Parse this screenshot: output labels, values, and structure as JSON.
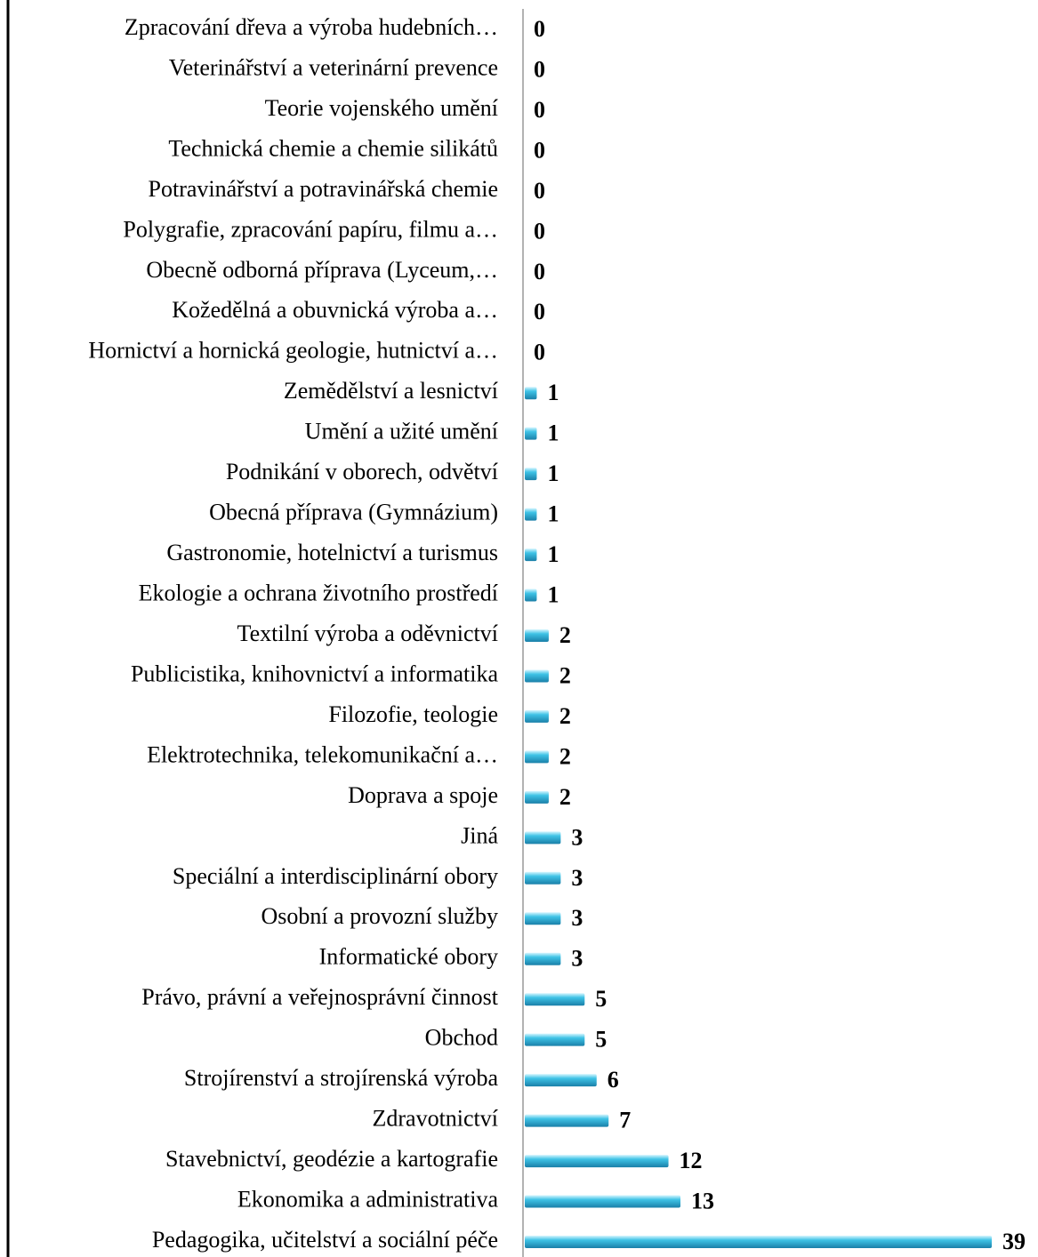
{
  "chart_data": {
    "type": "bar",
    "orientation": "horizontal",
    "color": "#3fc3e6",
    "categories": [
      "Zpracování dřeva a výroba hudebních…",
      "Veterinářství a veterinární prevence",
      "Teorie vojenského umění",
      "Technická chemie a chemie silikátů",
      "Potravinářství a potravinářská chemie",
      "Polygrafie, zpracování papíru, filmu a…",
      "Obecně odborná příprava (Lyceum,…",
      "Kožedělná a obuvnická výroba a…",
      "Hornictví a hornická geologie, hutnictví a…",
      "Zemědělství a lesnictví",
      "Umění a užité umění",
      "Podnikání v oborech, odvětví",
      "Obecná příprava (Gymnázium)",
      "Gastronomie, hotelnictví a turismus",
      "Ekologie a ochrana životního prostředí",
      "Textilní výroba a oděvnictví",
      "Publicistika, knihovnictví a informatika",
      "Filozofie, teologie",
      "Elektrotechnika, telekomunikační a…",
      "Doprava a spoje",
      "Jiná",
      "Speciální a interdisciplinární obory",
      "Osobní a provozní služby",
      "Informatické obory",
      "Právo, právní a veřejnosprávní činnost",
      "Obchod",
      "Strojírenství a strojírenská výroba",
      "Zdravotnictví",
      "Stavebnictví, geodézie a kartografie",
      "Ekonomika a administrativa",
      "Pedagogika, učitelství a sociální péče"
    ],
    "values": [
      0,
      0,
      0,
      0,
      0,
      0,
      0,
      0,
      0,
      1,
      1,
      1,
      1,
      1,
      1,
      2,
      2,
      2,
      2,
      2,
      3,
      3,
      3,
      3,
      5,
      5,
      6,
      7,
      12,
      13,
      39
    ],
    "xlim": [
      0,
      39
    ]
  }
}
